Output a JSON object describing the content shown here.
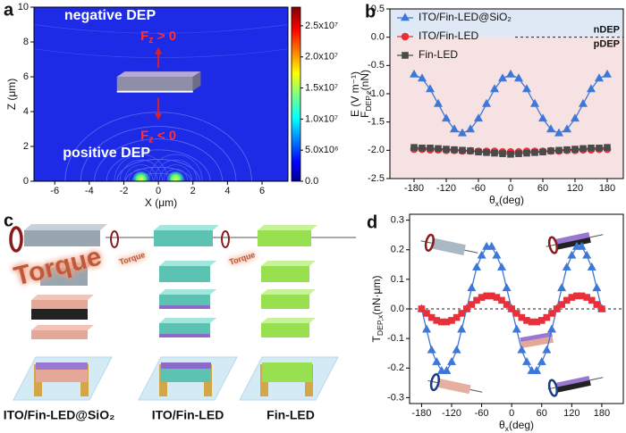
{
  "chart_data": [
    {
      "type": "field",
      "panel": "a",
      "xlabel": "X (μm)",
      "ylabel": "Z (μm)",
      "xlim": [
        -7.2,
        7.5
      ],
      "xticks": [
        -6,
        -4,
        -2,
        0,
        2,
        4,
        6
      ],
      "ylim": [
        0,
        10
      ],
      "yticks": [
        0,
        2,
        4,
        6,
        8,
        10
      ],
      "colormap": "jet",
      "clim": [
        0,
        28000000
      ],
      "cticks": [
        {
          "value": 0,
          "label": "0.0"
        },
        {
          "value": 5000000,
          "label": "5.0x10⁶"
        },
        {
          "value": 10000000,
          "label": "1.0x10⁷"
        },
        {
          "value": 15000000,
          "label": "1.5x10⁷"
        },
        {
          "value": 20000000,
          "label": "2.0x10⁷"
        },
        {
          "value": 25000000,
          "label": "2.5x10⁷"
        }
      ],
      "clabel": "E (V m⁻¹)",
      "annotations": [
        {
          "text": "negative DEP"
        },
        {
          "text": "F",
          "sub": "z",
          "rest": " > 0"
        },
        {
          "text": "F",
          "sub": "z",
          "rest": " < 0"
        },
        {
          "text": "positive DEP"
        }
      ]
    },
    {
      "type": "line",
      "panel": "b",
      "xlabel": {
        "text": "θ",
        "sub": "x",
        "rest": "(deg)"
      },
      "ylabel": {
        "text": "F",
        "sub": "DEP,z",
        "rest": "(nN)"
      },
      "xlim": [
        -225,
        210
      ],
      "xticks": [
        -180,
        -120,
        -60,
        0,
        60,
        120,
        180
      ],
      "ylim": [
        -2.5,
        0.5
      ],
      "yticks": [
        -2.5,
        {
          "value": -2,
          "label": "-2.0"
        },
        -1.5,
        {
          "value": -1,
          "label": "-1.0"
        },
        -0.5,
        {
          "value": 0,
          "label": "0.0"
        },
        0.5
      ],
      "shading": {
        "above": "#dfe9f5",
        "below": "#f6e1e3"
      },
      "zero_line": true,
      "legend": "upper left",
      "annotations": [
        {
          "text": "nDEP"
        },
        {
          "text": "pDEP"
        }
      ],
      "x": [
        -180,
        -165,
        -150,
        -135,
        -120,
        -105,
        -90,
        -75,
        -60,
        -45,
        -30,
        -15,
        0,
        15,
        30,
        45,
        60,
        75,
        90,
        105,
        120,
        135,
        150,
        165,
        180
      ],
      "series": [
        {
          "name": "ITO/Fin-LED@SiO₂",
          "color": "#3d78d8",
          "marker": "triangle",
          "values": [
            -0.66,
            -0.73,
            -0.92,
            -1.18,
            -1.44,
            -1.63,
            -1.7,
            -1.63,
            -1.44,
            -1.18,
            -0.92,
            -0.73,
            -0.66,
            -0.73,
            -0.92,
            -1.18,
            -1.44,
            -1.63,
            -1.7,
            -1.63,
            -1.44,
            -1.18,
            -0.92,
            -0.73,
            -0.66
          ]
        },
        {
          "name": "ITO/Fin-LED",
          "color": "#e8303a",
          "marker": "circle",
          "values": [
            -1.98,
            -1.98,
            -1.99,
            -1.99,
            -2.0,
            -2.0,
            -2.01,
            -2.01,
            -2.02,
            -2.02,
            -2.02,
            -2.03,
            -2.03,
            -2.03,
            -2.02,
            -2.02,
            -2.02,
            -2.01,
            -2.01,
            -2.0,
            -2.0,
            -1.99,
            -1.99,
            -1.98,
            -1.98
          ]
        },
        {
          "name": "Fin-LED",
          "color": "#4a4a4a",
          "marker": "square",
          "values": [
            -1.95,
            -1.96,
            -1.96,
            -1.97,
            -1.98,
            -1.99,
            -2.0,
            -2.01,
            -2.03,
            -2.04,
            -2.05,
            -2.06,
            -2.07,
            -2.06,
            -2.05,
            -2.04,
            -2.03,
            -2.01,
            -2.0,
            -1.99,
            -1.98,
            -1.97,
            -1.96,
            -1.96,
            -1.95
          ]
        }
      ]
    },
    {
      "type": "line",
      "panel": "d",
      "xlabel": {
        "text": "θ",
        "sub": "x",
        "rest": "(deg)"
      },
      "ylabel": {
        "text": "T",
        "sub": "DEP,x",
        "rest": "(nN·μm)"
      },
      "xlim": [
        -204,
        223
      ],
      "xticks": [
        -180,
        -120,
        -60,
        0,
        60,
        120,
        180
      ],
      "ylim": [
        -0.32,
        0.32
      ],
      "yticks": [
        -0.3,
        -0.2,
        -0.1,
        {
          "value": 0,
          "label": "0.0"
        },
        0.1,
        0.2,
        0.3
      ],
      "zero_line": true,
      "x": [
        -180,
        -170,
        -160,
        -150,
        -140,
        -130,
        -120,
        -110,
        -100,
        -90,
        -80,
        -70,
        -60,
        -50,
        -40,
        -30,
        -20,
        -10,
        0,
        10,
        20,
        30,
        40,
        50,
        60,
        70,
        80,
        90,
        100,
        110,
        120,
        130,
        140,
        150,
        160,
        170,
        180
      ],
      "series": [
        {
          "color": "#3d78d8",
          "marker": "triangle",
          "values": [
            0,
            -0.07,
            -0.14,
            -0.18,
            -0.21,
            -0.21,
            -0.18,
            -0.14,
            -0.07,
            0,
            0.07,
            0.14,
            0.18,
            0.21,
            0.21,
            0.18,
            0.14,
            0.07,
            0,
            -0.07,
            -0.14,
            -0.18,
            -0.21,
            -0.21,
            -0.18,
            -0.14,
            -0.07,
            0,
            0.07,
            0.14,
            0.18,
            0.21,
            0.21,
            0.18,
            0.14,
            0.07,
            0
          ]
        },
        {
          "color": "#e8303a",
          "marker": "square",
          "values": [
            0,
            -0.015,
            -0.029,
            -0.039,
            -0.044,
            -0.044,
            -0.039,
            -0.029,
            -0.015,
            0,
            0.015,
            0.029,
            0.039,
            0.044,
            0.044,
            0.039,
            0.029,
            0.015,
            0,
            -0.015,
            -0.029,
            -0.039,
            -0.044,
            -0.044,
            -0.039,
            -0.029,
            -0.015,
            0,
            0.015,
            0.029,
            0.039,
            0.044,
            0.044,
            0.039,
            0.029,
            0.015,
            0
          ]
        }
      ]
    }
  ],
  "panel_c": {
    "letter": "c",
    "torque": [
      "Torque",
      "Torque",
      "Torque"
    ],
    "devices": [
      "ITO/Fin-LED@SiO₂",
      "ITO/Fin-LED",
      "Fin-LED"
    ]
  }
}
